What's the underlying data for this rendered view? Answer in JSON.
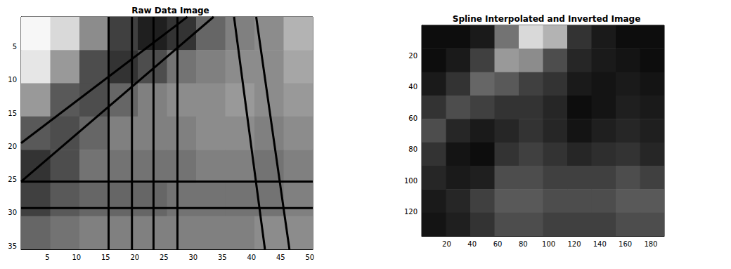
{
  "chart_data": [
    {
      "type": "heatmap",
      "title": "Raw Data Image",
      "grid": false,
      "xlim": [
        0.5,
        50.5
      ],
      "ylim": [
        0.5,
        35.5
      ],
      "xticks": [
        5,
        10,
        15,
        20,
        25,
        30,
        35,
        40,
        45,
        50
      ],
      "yticks": [
        5,
        10,
        15,
        20,
        25,
        30,
        35
      ],
      "color_range": [
        0,
        1
      ],
      "x_edges": [
        0.5,
        5.5,
        10.5,
        15.5,
        20.5,
        25.5,
        30.5,
        35.5,
        40.5,
        45.5,
        50.5
      ],
      "y_edges": [
        0.5,
        5.5,
        10.5,
        15.5,
        20.5,
        25.5,
        30.5,
        35.5
      ],
      "cells": [
        [
          0.97,
          0.85,
          0.55,
          0.25,
          0.12,
          0.2,
          0.4,
          0.5,
          0.55,
          0.7
        ],
        [
          0.9,
          0.6,
          0.3,
          0.2,
          0.3,
          0.45,
          0.5,
          0.55,
          0.55,
          0.65
        ],
        [
          0.6,
          0.35,
          0.3,
          0.4,
          0.5,
          0.55,
          0.55,
          0.6,
          0.55,
          0.6
        ],
        [
          0.35,
          0.3,
          0.4,
          0.5,
          0.5,
          0.5,
          0.55,
          0.55,
          0.5,
          0.55
        ],
        [
          0.2,
          0.3,
          0.45,
          0.45,
          0.45,
          0.45,
          0.5,
          0.5,
          0.45,
          0.5
        ],
        [
          0.25,
          0.35,
          0.4,
          0.4,
          0.4,
          0.45,
          0.45,
          0.45,
          0.45,
          0.5
        ],
        [
          0.4,
          0.45,
          0.5,
          0.5,
          0.5,
          0.5,
          0.5,
          0.5,
          0.55,
          0.55
        ]
      ],
      "lines": [
        [
          0.5,
          19.5,
          29,
          0.5
        ],
        [
          0.5,
          25.3,
          33.5,
          0.5
        ],
        [
          15.5,
          0.5,
          15.5,
          35.5
        ],
        [
          19.5,
          0.5,
          19.5,
          35.5
        ],
        [
          23.2,
          0.5,
          23.2,
          35.5
        ],
        [
          27.3,
          0.5,
          27.3,
          35.5
        ],
        [
          0.5,
          25.3,
          50.5,
          25.3
        ],
        [
          0.5,
          29.3,
          50.5,
          29.3
        ],
        [
          37,
          0.5,
          42.3,
          35.5
        ],
        [
          40.8,
          0.5,
          46.5,
          35.5
        ]
      ]
    },
    {
      "type": "heatmap",
      "title": "Spline Interpolated and Inverted Image",
      "grid": false,
      "xlim": [
        0.5,
        190.5
      ],
      "ylim": [
        0.5,
        135.5
      ],
      "xticks": [
        20,
        40,
        60,
        80,
        100,
        120,
        140,
        160,
        180
      ],
      "yticks": [
        20,
        40,
        60,
        80,
        100,
        120
      ],
      "color_range": [
        0,
        1
      ],
      "x_edges": [
        0.5,
        19.5,
        38.5,
        57.5,
        76.5,
        95.5,
        114.5,
        133.5,
        152.5,
        171.5,
        190.5
      ],
      "y_edges": [
        0.5,
        15.5,
        30.5,
        45.5,
        60.5,
        75.5,
        90.5,
        105.5,
        120.5,
        135.5
      ],
      "cells": [
        [
          0.05,
          0.05,
          0.1,
          0.45,
          0.85,
          0.7,
          0.2,
          0.1,
          0.05,
          0.05
        ],
        [
          0.05,
          0.1,
          0.25,
          0.6,
          0.55,
          0.3,
          0.15,
          0.1,
          0.08,
          0.05
        ],
        [
          0.1,
          0.2,
          0.4,
          0.35,
          0.25,
          0.2,
          0.1,
          0.08,
          0.1,
          0.08
        ],
        [
          0.2,
          0.3,
          0.25,
          0.2,
          0.2,
          0.15,
          0.05,
          0.08,
          0.12,
          0.1
        ],
        [
          0.3,
          0.15,
          0.1,
          0.15,
          0.2,
          0.15,
          0.08,
          0.12,
          0.15,
          0.12
        ],
        [
          0.2,
          0.08,
          0.05,
          0.2,
          0.25,
          0.2,
          0.15,
          0.18,
          0.2,
          0.15
        ],
        [
          0.15,
          0.1,
          0.12,
          0.3,
          0.3,
          0.25,
          0.25,
          0.25,
          0.3,
          0.25
        ],
        [
          0.1,
          0.15,
          0.25,
          0.35,
          0.35,
          0.3,
          0.3,
          0.3,
          0.35,
          0.35
        ],
        [
          0.08,
          0.12,
          0.2,
          0.3,
          0.3,
          0.25,
          0.25,
          0.25,
          0.3,
          0.3
        ]
      ]
    }
  ]
}
